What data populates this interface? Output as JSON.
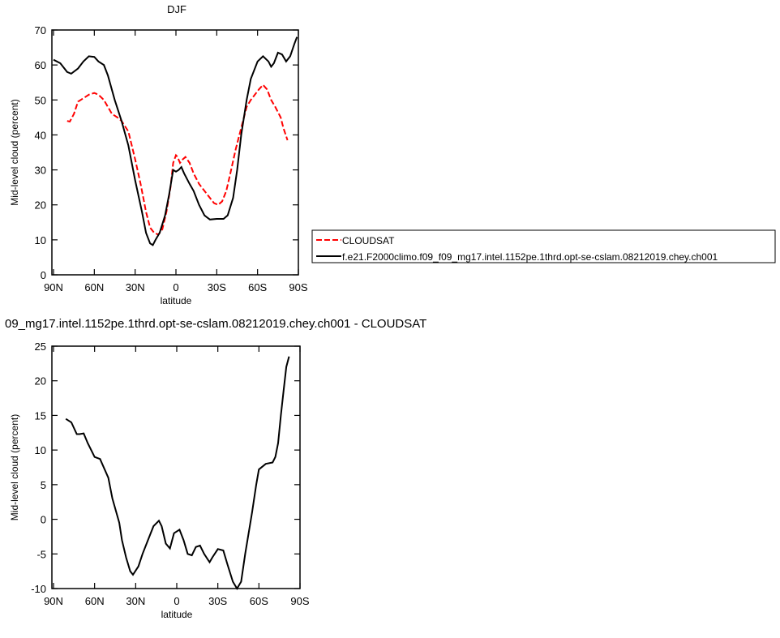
{
  "chart_data": [
    {
      "type": "line",
      "title": "DJF",
      "x_label": "latitude",
      "y_label": "Mid-level cloud (percent)",
      "xlim": [
        90,
        -90
      ],
      "xticks": [
        {
          "value": 90,
          "label": "90N"
        },
        {
          "value": 60,
          "label": "60N"
        },
        {
          "value": 30,
          "label": "30N"
        },
        0,
        {
          "value": -30,
          "label": "30S"
        },
        {
          "value": -60,
          "label": "60S"
        },
        {
          "value": -90,
          "label": "90S"
        }
      ],
      "ylim": [
        0,
        70
      ],
      "yticks": [
        0,
        10,
        20,
        30,
        40,
        50,
        60,
        70
      ],
      "series": [
        {
          "name": "CLOUDSAT",
          "color": "#ff0000",
          "dash": true,
          "x": [
            80,
            78,
            75,
            72,
            68,
            64,
            60,
            57,
            53,
            50,
            47,
            43,
            40,
            35,
            30,
            26,
            22,
            19,
            16,
            13,
            10,
            7,
            4,
            2,
            0,
            -1,
            -3,
            -5,
            -7,
            -10,
            -13,
            -17,
            -21,
            -25,
            -28,
            -31,
            -34,
            -37,
            -40,
            -44,
            -48,
            -52,
            -55,
            -58,
            -61,
            -64,
            -67,
            -70,
            -73,
            -77,
            -79,
            -82
          ],
          "values": [
            44,
            43.8,
            46,
            49.5,
            50.5,
            51.5,
            52,
            51.5,
            50,
            48,
            46,
            45,
            44,
            41,
            33,
            26,
            18,
            13.5,
            12,
            11.5,
            13,
            18,
            25,
            32,
            34.2,
            33.8,
            32,
            33,
            33.7,
            32,
            29,
            26,
            24,
            22,
            20.5,
            20,
            21,
            24,
            29,
            36,
            42,
            48,
            50,
            51.5,
            53,
            54.3,
            53,
            50,
            48,
            45,
            42,
            38.5
          ]
        },
        {
          "name": "f.e21.F2000climo.f09_f09_mg17.intel.1152pe.1thrd.opt-se-cslam.08212019.chey.ch001",
          "color": "#000000",
          "dash": false,
          "x": [
            90,
            85,
            80,
            77,
            72,
            68,
            64,
            60,
            57,
            53,
            50,
            45,
            40,
            35,
            30,
            25,
            22,
            19,
            17,
            15,
            12,
            8,
            5,
            2,
            0,
            -2,
            -4,
            -6,
            -10,
            -13,
            -17,
            -21,
            -25,
            -30,
            -35,
            -38,
            -42,
            -45,
            -48,
            -52,
            -55,
            -60,
            -64,
            -68,
            -70,
            -72,
            -75,
            -78,
            -81,
            -84,
            -87,
            -89
          ],
          "values": [
            61.5,
            60.5,
            58,
            57.5,
            59,
            61,
            62.5,
            62.3,
            61,
            60,
            57,
            50,
            44,
            37,
            27,
            18,
            12,
            9,
            8.5,
            10,
            12,
            17,
            23,
            30,
            29.5,
            30,
            30.8,
            29,
            26,
            24,
            20,
            17,
            15.8,
            16,
            16,
            17,
            22,
            30,
            40,
            50,
            56,
            61,
            62.5,
            61,
            59.5,
            60.5,
            63.5,
            63,
            61,
            62.5,
            66,
            68
          ]
        }
      ]
    },
    {
      "type": "line",
      "title": "09_mg17.intel.1152pe.1thrd.opt-se-cslam.08212019.chey.ch001 - CLOUDSAT",
      "x_label": "latitude",
      "y_label": "Mid-level cloud (percent)",
      "xlim": [
        90,
        -90
      ],
      "xticks": [
        {
          "value": 90,
          "label": "90N"
        },
        {
          "value": 60,
          "label": "60N"
        },
        {
          "value": 30,
          "label": "30N"
        },
        0,
        {
          "value": -30,
          "label": "30S"
        },
        {
          "value": -60,
          "label": "60S"
        },
        {
          "value": -90,
          "label": "90S"
        }
      ],
      "ylim": [
        -10,
        25
      ],
      "yticks": [
        -10,
        -5,
        0,
        5,
        10,
        15,
        20,
        25
      ],
      "color": "#000000",
      "x": [
        81,
        77,
        73,
        71,
        68,
        65,
        60,
        56,
        50,
        47,
        42,
        40,
        37,
        34,
        32,
        28,
        25,
        21,
        17,
        13,
        11,
        8,
        5,
        2,
        -2,
        -5,
        -8,
        -11,
        -14,
        -17,
        -20,
        -24,
        -26,
        -30,
        -34,
        -37,
        -41,
        -44,
        -47,
        -50,
        -55,
        -58,
        -60,
        -65,
        -70,
        -72,
        -74,
        -76,
        -78,
        -80,
        -82
      ],
      "values": [
        14.5,
        14,
        12.3,
        12.3,
        12.4,
        11,
        9,
        8.7,
        6,
        3,
        -0.5,
        -3,
        -5.5,
        -7.5,
        -8,
        -6.8,
        -5,
        -3,
        -1,
        -0.2,
        -1,
        -3.5,
        -4.2,
        -2,
        -1.5,
        -3,
        -5,
        -5.2,
        -4,
        -3.8,
        -5,
        -6.2,
        -5.5,
        -4.3,
        -4.5,
        -6.5,
        -9,
        -10,
        -9,
        -5,
        1,
        5,
        7.2,
        8,
        8.2,
        9,
        11,
        15,
        18.5,
        22,
        23.5
      ]
    }
  ]
}
